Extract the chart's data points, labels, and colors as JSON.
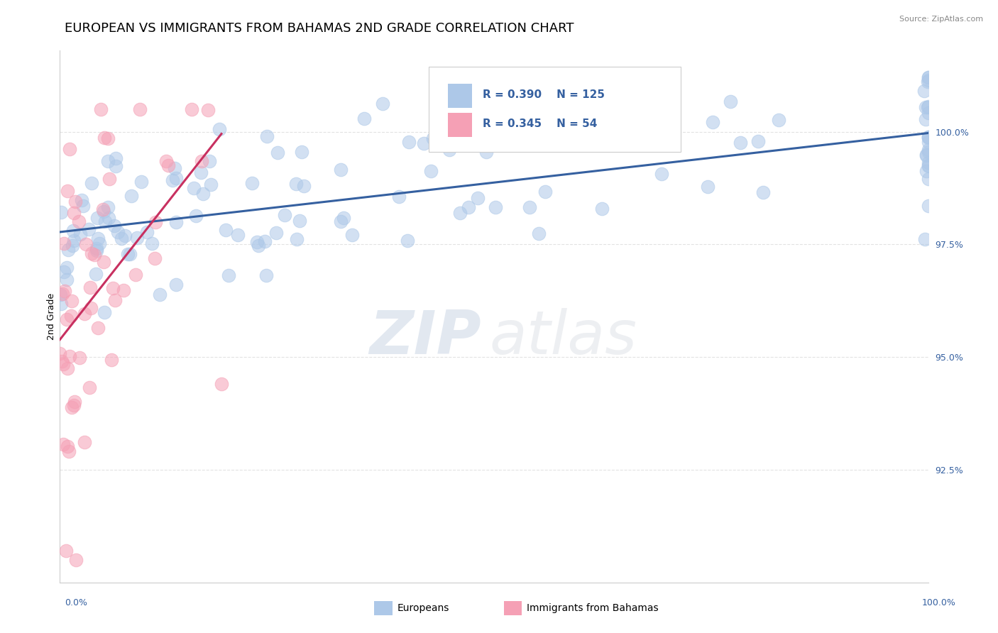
{
  "title": "EUROPEAN VS IMMIGRANTS FROM BAHAMAS 2ND GRADE CORRELATION CHART",
  "source_text": "Source: ZipAtlas.com",
  "ylabel": "2nd Grade",
  "y_tick_labels": [
    "92.5%",
    "95.0%",
    "97.5%",
    "100.0%"
  ],
  "y_tick_values": [
    92.5,
    95.0,
    97.5,
    100.0
  ],
  "xlim": [
    0.0,
    100.0
  ],
  "ylim": [
    90.0,
    101.8
  ],
  "legend_r_blue": "R = 0.390",
  "legend_n_blue": "N = 125",
  "legend_r_pink": "R = 0.345",
  "legend_n_pink": "N = 54",
  "blue_color": "#adc8e8",
  "blue_edge_color": "#adc8e8",
  "blue_line_color": "#3560a0",
  "pink_color": "#f5a0b5",
  "pink_edge_color": "#f5a0b5",
  "pink_line_color": "#c83060",
  "legend_text_color": "#3560a0",
  "tick_color": "#3560a0",
  "title_fontsize": 13,
  "axis_label_fontsize": 9,
  "tick_fontsize": 9,
  "source_fontsize": 8,
  "watermark_zip_color": "#6080b0",
  "watermark_atlas_color": "#a0a8b8"
}
